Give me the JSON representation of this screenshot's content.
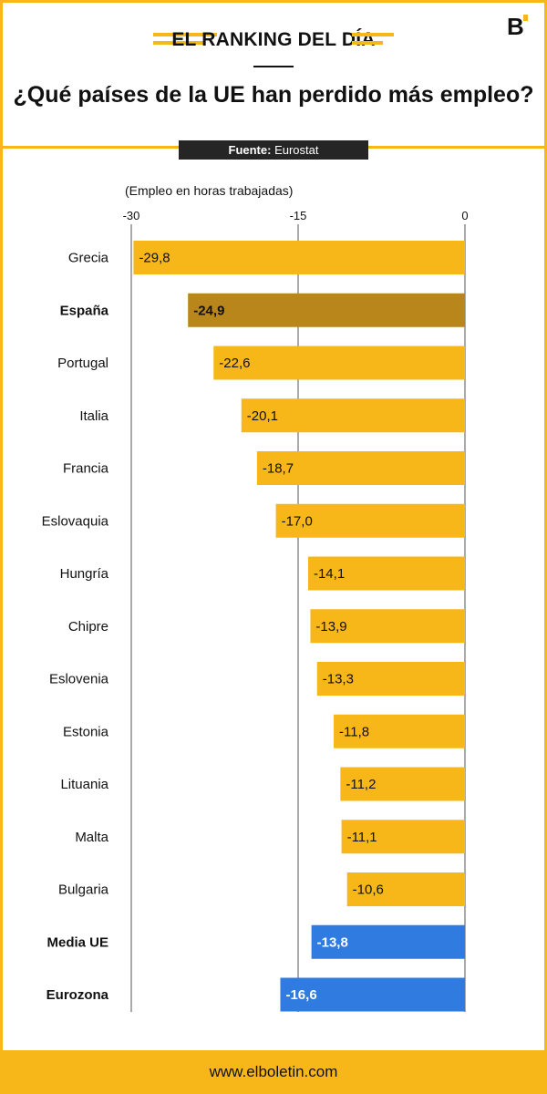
{
  "header": {
    "kicker": "EL RANKING DEL DÍA",
    "title": "¿Qué países de la UE han perdido más empleo?",
    "source_label": "Fuente:",
    "source_value": "Eurostat",
    "logo_letter": "B"
  },
  "footer": {
    "url": "www.elboletin.com"
  },
  "colors": {
    "accent": "#f7b718",
    "highlight": "#b8861b",
    "aggregate": "#2f7be0",
    "dark": "#252525"
  },
  "chart_data": {
    "type": "bar",
    "orientation": "horizontal",
    "unit_label": "(Empleo en horas trabajadas)",
    "xlim": [
      -30,
      0
    ],
    "xticks": [
      -30,
      -15,
      0
    ],
    "categories": [
      "Grecia",
      "España",
      "Portugal",
      "Italia",
      "Francia",
      "Eslovaquia",
      "Hungría",
      "Chipre",
      "Eslovenia",
      "Estonia",
      "Lituania",
      "Malta",
      "Bulgaria",
      "Media UE",
      "Eurozona"
    ],
    "values": [
      -29.8,
      -24.9,
      -22.6,
      -20.1,
      -18.7,
      -17.0,
      -14.1,
      -13.9,
      -13.3,
      -11.8,
      -11.2,
      -11.1,
      -10.6,
      -13.8,
      -16.6
    ],
    "value_labels": [
      "-29,8",
      "-24,9",
      "-22,6",
      "-20,1",
      "-18,7",
      "-17,0",
      "-14,1",
      "-13,9",
      "-13,3",
      "-11,8",
      "-11,2",
      "-11,1",
      "-10,6",
      "-13,8",
      "-16,6"
    ],
    "bar_kinds": [
      "normal",
      "highlight",
      "normal",
      "normal",
      "normal",
      "normal",
      "normal",
      "normal",
      "normal",
      "normal",
      "normal",
      "normal",
      "normal",
      "aggregate",
      "aggregate"
    ],
    "grid": true
  }
}
